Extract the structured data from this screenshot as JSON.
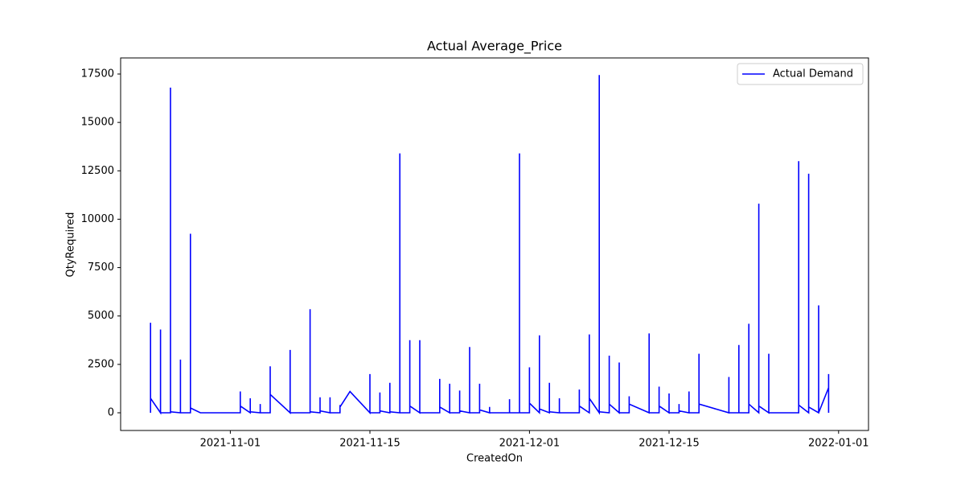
{
  "chart_data": {
    "type": "line",
    "title": "Actual Average_Price",
    "x_label": "CreatedOn",
    "y_label": "QtyRequired",
    "legend_position": "upper right",
    "x": [
      "2021-10-24",
      "2021-10-24",
      "2021-10-24",
      "2021-10-25",
      "2021-10-25",
      "2021-10-25",
      "2021-10-26",
      "2021-10-26",
      "2021-10-26",
      "2021-10-27",
      "2021-10-27",
      "2021-10-27",
      "2021-10-28",
      "2021-10-28",
      "2021-10-28",
      "2021-10-29",
      "2021-11-01",
      "2021-11-02",
      "2021-11-02",
      "2021-11-02",
      "2021-11-03",
      "2021-11-03",
      "2021-11-03",
      "2021-11-04",
      "2021-11-04",
      "2021-11-04",
      "2021-11-05",
      "2021-11-05",
      "2021-11-05",
      "2021-11-07",
      "2021-11-07",
      "2021-11-07",
      "2021-11-09",
      "2021-11-09",
      "2021-11-09",
      "2021-11-10",
      "2021-11-10",
      "2021-11-10",
      "2021-11-11",
      "2021-11-11",
      "2021-11-11",
      "2021-11-12",
      "2021-11-12",
      "2021-11-12",
      "2021-11-13",
      "2021-11-15",
      "2021-11-15",
      "2021-11-15",
      "2021-11-16",
      "2021-11-16",
      "2021-11-16",
      "2021-11-17",
      "2021-11-17",
      "2021-11-17",
      "2021-11-18",
      "2021-11-18",
      "2021-11-18",
      "2021-11-19",
      "2021-11-19",
      "2021-11-19",
      "2021-11-20",
      "2021-11-20",
      "2021-11-20",
      "2021-11-22",
      "2021-11-22",
      "2021-11-22",
      "2021-11-23",
      "2021-11-23",
      "2021-11-23",
      "2021-11-24",
      "2021-11-24",
      "2021-11-24",
      "2021-11-25",
      "2021-11-25",
      "2021-11-25",
      "2021-11-26",
      "2021-11-26",
      "2021-11-26",
      "2021-11-27",
      "2021-11-27",
      "2021-11-27",
      "2021-11-29",
      "2021-11-29",
      "2021-11-29",
      "2021-11-30",
      "2021-11-30",
      "2021-11-30",
      "2021-12-01",
      "2021-12-01",
      "2021-12-01",
      "2021-12-02",
      "2021-12-02",
      "2021-12-02",
      "2021-12-03",
      "2021-12-03",
      "2021-12-03",
      "2021-12-04",
      "2021-12-04",
      "2021-12-04",
      "2021-12-06",
      "2021-12-06",
      "2021-12-06",
      "2021-12-07",
      "2021-12-07",
      "2021-12-07",
      "2021-12-08",
      "2021-12-08",
      "2021-12-08",
      "2021-12-09",
      "2021-12-09",
      "2021-12-09",
      "2021-12-10",
      "2021-12-10",
      "2021-12-10",
      "2021-12-11",
      "2021-12-11",
      "2021-12-11",
      "2021-12-13",
      "2021-12-13",
      "2021-12-13",
      "2021-12-14",
      "2021-12-14",
      "2021-12-14",
      "2021-12-15",
      "2021-12-15",
      "2021-12-15",
      "2021-12-16",
      "2021-12-16",
      "2021-12-16",
      "2021-12-17",
      "2021-12-17",
      "2021-12-17",
      "2021-12-18",
      "2021-12-18",
      "2021-12-18",
      "2021-12-21",
      "2021-12-21",
      "2021-12-21",
      "2021-12-22",
      "2021-12-22",
      "2021-12-22",
      "2021-12-23",
      "2021-12-23",
      "2021-12-23",
      "2021-12-24",
      "2021-12-24",
      "2021-12-24",
      "2021-12-25",
      "2021-12-25",
      "2021-12-25",
      "2021-12-28",
      "2021-12-28",
      "2021-12-28",
      "2021-12-29",
      "2021-12-29",
      "2021-12-29",
      "2021-12-30",
      "2021-12-30",
      "2021-12-30",
      "2021-12-31",
      "2021-12-31",
      "2021-12-31"
    ],
    "series": [
      {
        "name": "Actual Demand",
        "color": "#0000ff",
        "values": [
          0,
          4650,
          750,
          0,
          4300,
          0,
          0,
          16800,
          50,
          0,
          2750,
          0,
          0,
          9250,
          250,
          0,
          0,
          0,
          1100,
          350,
          0,
          750,
          50,
          0,
          450,
          0,
          0,
          2400,
          950,
          0,
          3250,
          0,
          0,
          5350,
          50,
          0,
          800,
          100,
          0,
          800,
          0,
          0,
          400,
          300,
          1100,
          0,
          2000,
          0,
          0,
          1050,
          100,
          0,
          1550,
          50,
          0,
          13400,
          0,
          0,
          3750,
          350,
          0,
          3750,
          0,
          0,
          1750,
          300,
          0,
          1500,
          0,
          0,
          1150,
          100,
          0,
          3400,
          0,
          0,
          1500,
          150,
          0,
          300,
          0,
          0,
          700,
          0,
          0,
          13400,
          0,
          0,
          2350,
          500,
          0,
          4000,
          200,
          0,
          1550,
          50,
          0,
          750,
          0,
          0,
          1200,
          350,
          0,
          4050,
          750,
          0,
          17450,
          50,
          0,
          2950,
          450,
          0,
          2600,
          0,
          0,
          850,
          450,
          0,
          4100,
          0,
          0,
          1350,
          350,
          0,
          1000,
          0,
          0,
          450,
          100,
          0,
          1100,
          0,
          0,
          3050,
          450,
          0,
          1850,
          0,
          0,
          3500,
          0,
          0,
          4600,
          450,
          0,
          10800,
          350,
          0,
          3050,
          0,
          0,
          13000,
          400,
          0,
          12350,
          300,
          0,
          5550,
          0,
          1300,
          2000,
          0
        ]
      }
    ],
    "xlim": [
      "2021-10-21",
      "2022-01-04"
    ],
    "xticks": [
      "2021-11-01",
      "2021-11-15",
      "2021-12-01",
      "2021-12-15",
      "2022-01-01"
    ],
    "ylim": [
      -914,
      18331
    ],
    "yticks": [
      0,
      2500,
      5000,
      7500,
      10000,
      12500,
      15000,
      17500
    ],
    "grid": false
  }
}
